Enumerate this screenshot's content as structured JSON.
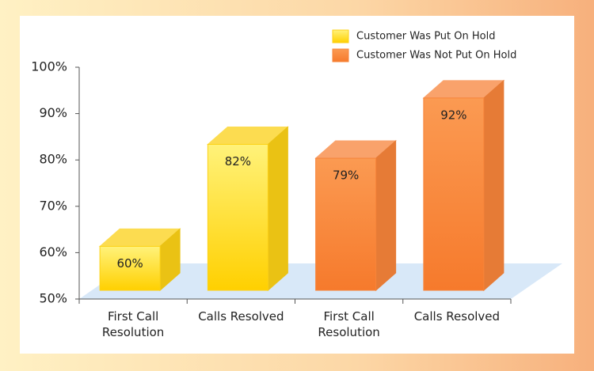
{
  "chart_data": {
    "type": "bar3d",
    "categories": [
      "First Call Resolution",
      "Calls Resolved",
      "First Call Resolution",
      "Calls Resolved"
    ],
    "series": [
      {
        "name": "Customer Was Put On Hold",
        "color": "#fcd116",
        "values": [
          60,
          82,
          null,
          null
        ],
        "value_labels": [
          "60%",
          "82%",
          null,
          null
        ]
      },
      {
        "name": "Customer Was Not Put On Hold",
        "color": "#f7843a",
        "values": [
          null,
          null,
          79,
          92
        ],
        "value_labels": [
          null,
          null,
          "79%",
          "92%"
        ]
      }
    ],
    "ylim": [
      50,
      100
    ],
    "yticks": [
      {
        "value": 50,
        "label": "50%"
      },
      {
        "value": 60,
        "label": "60%"
      },
      {
        "value": 70,
        "label": "70%"
      },
      {
        "value": 80,
        "label": "80%"
      },
      {
        "value": 90,
        "label": "90%"
      },
      {
        "value": 100,
        "label": "100%"
      }
    ],
    "legend": "top-right"
  }
}
